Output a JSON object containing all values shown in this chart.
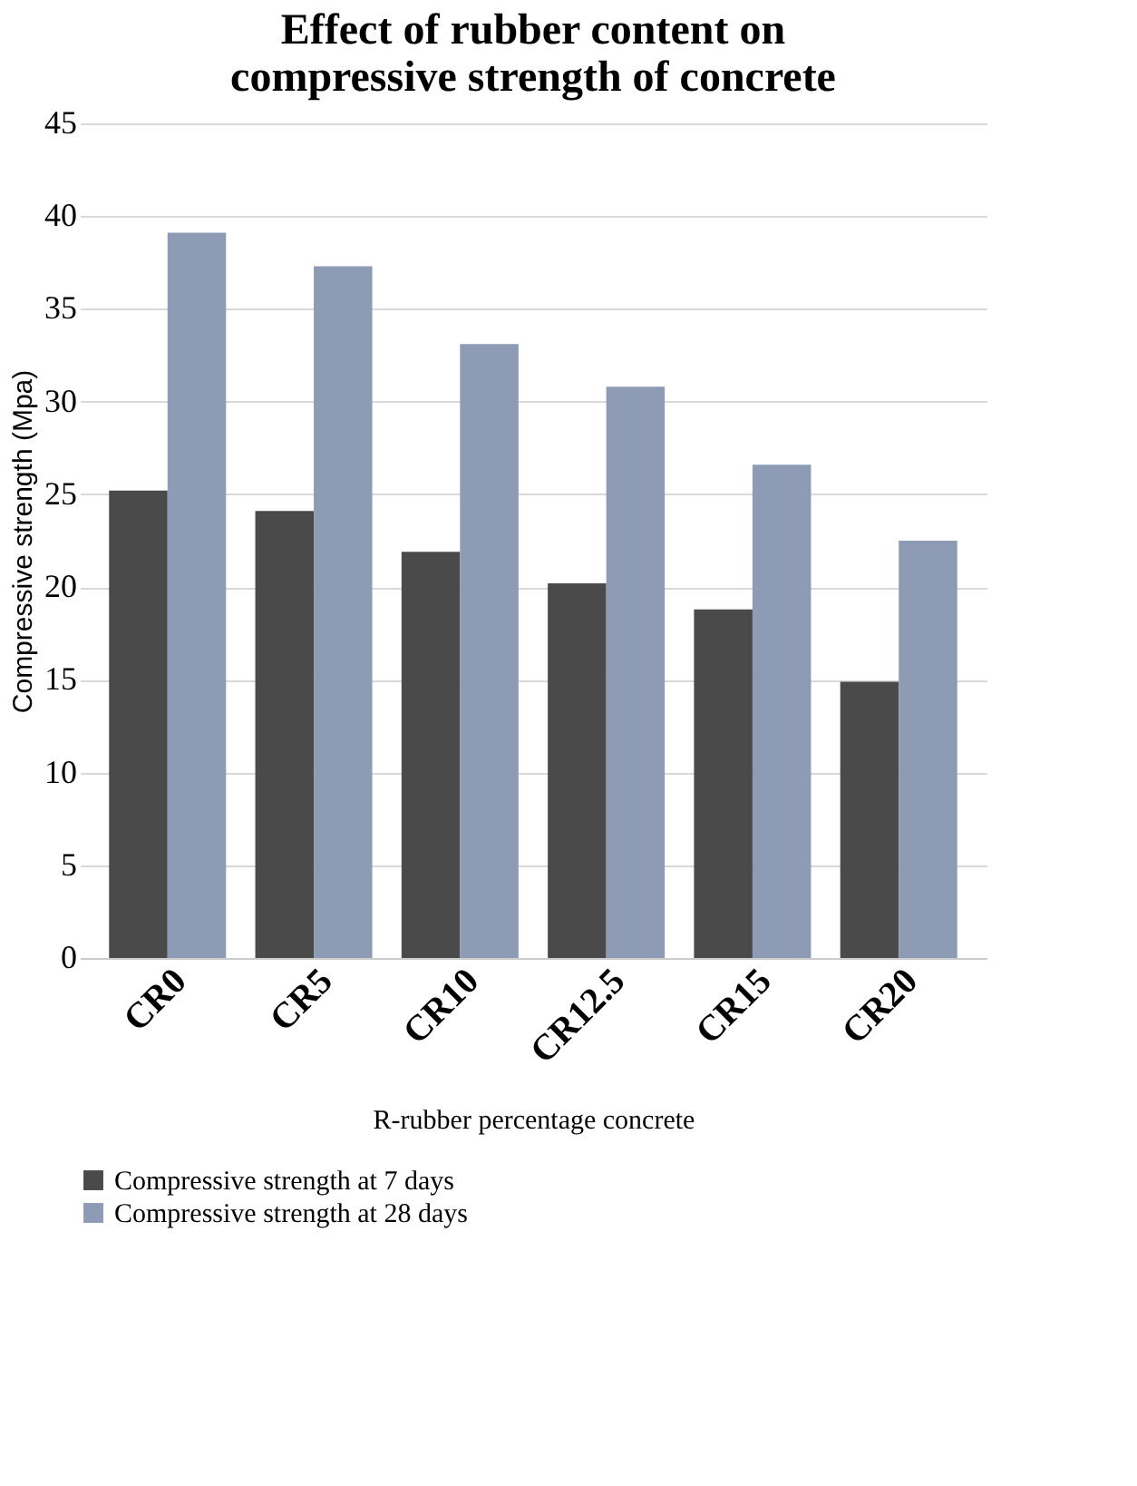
{
  "chart_data": {
    "type": "bar",
    "title": [
      "Effect of rubber content on",
      "compressive strength of concrete"
    ],
    "xlabel": "R-rubber percentage concrete",
    "ylabel": "Compressive strength (Mpa)",
    "categories": [
      "CR0",
      "CR5",
      "CR10",
      "CR12.5",
      "CR15",
      "CR20"
    ],
    "series": [
      {
        "name": "Compressive strength at 7 days",
        "color": "#4a4a4a",
        "values": [
          25.2,
          24.1,
          21.9,
          20.2,
          18.8,
          14.9
        ]
      },
      {
        "name": "Compressive strength at 28 days",
        "color": "#8e9bb5",
        "values": [
          39.1,
          37.3,
          33.1,
          30.8,
          26.6,
          22.5
        ]
      }
    ],
    "ylim": [
      0,
      45
    ],
    "yticks": [
      0,
      5,
      10,
      15,
      20,
      25,
      30,
      35,
      40,
      45
    ],
    "grid": "y",
    "legend": "bottom"
  }
}
